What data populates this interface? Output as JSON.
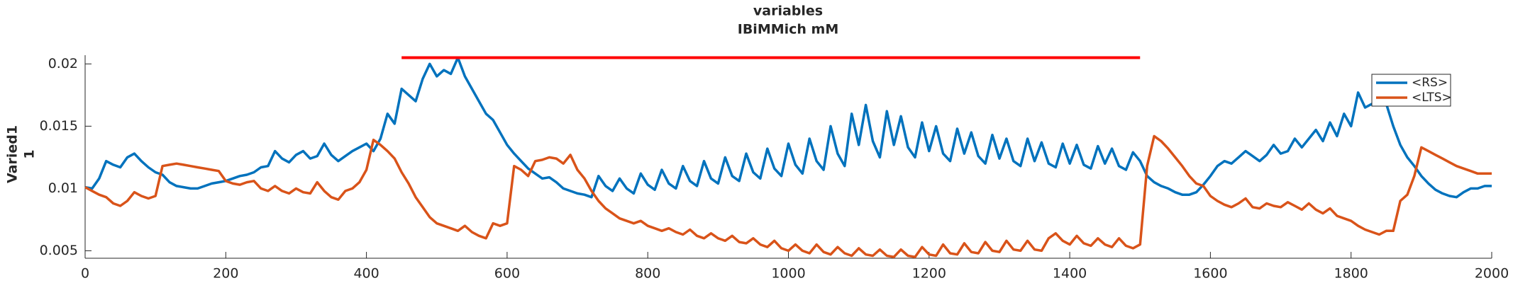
{
  "chart_data": {
    "type": "line",
    "title": "variables",
    "subtitle": "IBiMMich mM",
    "ylabel": [
      "Varied1",
      "1"
    ],
    "xlim": [
      0,
      2000
    ],
    "xticks": [
      0,
      200,
      400,
      600,
      800,
      1000,
      1200,
      1400,
      1600,
      1800,
      2000
    ],
    "ylim": [
      0.0044,
      0.0207
    ],
    "yticks": [
      0.005,
      0.01,
      0.015,
      0.02
    ],
    "grid": false,
    "legend": "upper right",
    "significance": {
      "x": [
        450,
        1500
      ],
      "value": 0.0205,
      "color": "#ff0000"
    },
    "x": [
      0,
      10,
      20,
      30,
      40,
      50,
      60,
      70,
      80,
      90,
      100,
      110,
      120,
      130,
      140,
      150,
      160,
      170,
      180,
      190,
      200,
      210,
      220,
      230,
      240,
      250,
      260,
      270,
      280,
      290,
      300,
      310,
      320,
      330,
      340,
      350,
      360,
      370,
      380,
      390,
      400,
      410,
      420,
      430,
      440,
      450,
      460,
      470,
      480,
      490,
      500,
      510,
      520,
      530,
      540,
      550,
      560,
      570,
      580,
      590,
      600,
      610,
      620,
      630,
      640,
      650,
      660,
      670,
      680,
      690,
      700,
      710,
      720,
      730,
      740,
      750,
      760,
      770,
      780,
      790,
      800,
      810,
      820,
      830,
      840,
      850,
      860,
      870,
      880,
      890,
      900,
      910,
      920,
      930,
      940,
      950,
      960,
      970,
      980,
      990,
      1000,
      1010,
      1020,
      1030,
      1040,
      1050,
      1060,
      1070,
      1080,
      1090,
      1100,
      1110,
      1120,
      1130,
      1140,
      1150,
      1160,
      1170,
      1180,
      1190,
      1200,
      1210,
      1220,
      1230,
      1240,
      1250,
      1260,
      1270,
      1280,
      1290,
      1300,
      1310,
      1320,
      1330,
      1340,
      1350,
      1360,
      1370,
      1380,
      1390,
      1400,
      1410,
      1420,
      1430,
      1440,
      1450,
      1460,
      1470,
      1480,
      1490,
      1500,
      1510,
      1520,
      1530,
      1540,
      1550,
      1560,
      1570,
      1580,
      1590,
      1600,
      1610,
      1620,
      1630,
      1640,
      1650,
      1660,
      1670,
      1680,
      1690,
      1700,
      1710,
      1720,
      1730,
      1740,
      1750,
      1760,
      1770,
      1780,
      1790,
      1800,
      1810,
      1820,
      1830,
      1840,
      1850,
      1860,
      1870,
      1880,
      1890,
      1900,
      1910,
      1920,
      1930,
      1940,
      1950,
      1960,
      1970,
      1980,
      1990,
      2000
    ],
    "series": [
      {
        "name": "<RS>",
        "color": "#0072BD",
        "values": [
          0.0101,
          0.01,
          0.0108,
          0.0122,
          0.0119,
          0.0117,
          0.0125,
          0.0128,
          0.0122,
          0.0117,
          0.0113,
          0.0111,
          0.0105,
          0.0102,
          0.0101,
          0.01,
          0.01,
          0.0102,
          0.0104,
          0.0105,
          0.0106,
          0.0108,
          0.011,
          0.0111,
          0.0113,
          0.0117,
          0.0118,
          0.013,
          0.0124,
          0.0121,
          0.0127,
          0.013,
          0.0124,
          0.0126,
          0.0136,
          0.0127,
          0.0122,
          0.0126,
          0.013,
          0.0133,
          0.0136,
          0.013,
          0.014,
          0.016,
          0.0152,
          0.018,
          0.0175,
          0.017,
          0.0188,
          0.02,
          0.019,
          0.0195,
          0.0192,
          0.0205,
          0.019,
          0.018,
          0.017,
          0.016,
          0.0155,
          0.0145,
          0.0135,
          0.0128,
          0.0122,
          0.0116,
          0.0112,
          0.0108,
          0.0109,
          0.0105,
          0.01,
          0.0098,
          0.0096,
          0.0095,
          0.0093,
          0.011,
          0.0102,
          0.0098,
          0.0108,
          0.01,
          0.0096,
          0.0112,
          0.0103,
          0.0099,
          0.0115,
          0.0104,
          0.01,
          0.0118,
          0.0106,
          0.0102,
          0.0122,
          0.0108,
          0.0104,
          0.0125,
          0.011,
          0.0106,
          0.0128,
          0.0113,
          0.0108,
          0.0132,
          0.0116,
          0.011,
          0.0136,
          0.0119,
          0.0112,
          0.014,
          0.0122,
          0.0115,
          0.015,
          0.0128,
          0.0118,
          0.016,
          0.0135,
          0.0167,
          0.0138,
          0.0125,
          0.0162,
          0.0135,
          0.0158,
          0.0133,
          0.0125,
          0.0153,
          0.013,
          0.015,
          0.0128,
          0.0122,
          0.0148,
          0.0128,
          0.0145,
          0.0126,
          0.012,
          0.0143,
          0.0124,
          0.014,
          0.0122,
          0.0118,
          0.014,
          0.0122,
          0.0137,
          0.012,
          0.0117,
          0.0136,
          0.012,
          0.0135,
          0.0119,
          0.0116,
          0.0134,
          0.012,
          0.0132,
          0.0118,
          0.0115,
          0.0129,
          0.0122,
          0.011,
          0.0105,
          0.0102,
          0.01,
          0.0097,
          0.0095,
          0.0095,
          0.0097,
          0.0103,
          0.011,
          0.0118,
          0.0122,
          0.012,
          0.0125,
          0.013,
          0.0126,
          0.0122,
          0.0127,
          0.0135,
          0.0128,
          0.013,
          0.014,
          0.0133,
          0.014,
          0.0147,
          0.0138,
          0.0153,
          0.0142,
          0.016,
          0.015,
          0.0177,
          0.0165,
          0.0168,
          0.0175,
          0.0168,
          0.015,
          0.0135,
          0.0125,
          0.0118,
          0.011,
          0.0104,
          0.0099,
          0.0096,
          0.0094,
          0.0093,
          0.0097,
          0.01,
          0.01,
          0.0102,
          0.0102
        ]
      },
      {
        "name": "<LTS>",
        "color": "#D95319",
        "values": [
          0.0101,
          0.0098,
          0.0095,
          0.0093,
          0.0088,
          0.0086,
          0.009,
          0.0097,
          0.0094,
          0.0092,
          0.0094,
          0.0118,
          0.0119,
          0.012,
          0.0119,
          0.0118,
          0.0117,
          0.0116,
          0.0115,
          0.0114,
          0.0106,
          0.0104,
          0.0103,
          0.0105,
          0.0106,
          0.01,
          0.0098,
          0.0102,
          0.0098,
          0.0096,
          0.01,
          0.0097,
          0.0096,
          0.0105,
          0.0098,
          0.0093,
          0.0091,
          0.0098,
          0.01,
          0.0105,
          0.0115,
          0.0139,
          0.0135,
          0.013,
          0.0124,
          0.0113,
          0.0104,
          0.0093,
          0.0085,
          0.0077,
          0.0072,
          0.007,
          0.0068,
          0.0066,
          0.007,
          0.0065,
          0.0062,
          0.006,
          0.0072,
          0.007,
          0.0072,
          0.0118,
          0.0115,
          0.011,
          0.0122,
          0.0123,
          0.0125,
          0.0124,
          0.012,
          0.0127,
          0.0115,
          0.0108,
          0.0098,
          0.009,
          0.0084,
          0.008,
          0.0076,
          0.0074,
          0.0072,
          0.0074,
          0.007,
          0.0068,
          0.0066,
          0.0068,
          0.0065,
          0.0063,
          0.0067,
          0.0062,
          0.006,
          0.0064,
          0.006,
          0.0058,
          0.0062,
          0.0057,
          0.0056,
          0.006,
          0.0055,
          0.0053,
          0.0058,
          0.0052,
          0.005,
          0.0055,
          0.005,
          0.0048,
          0.0055,
          0.0049,
          0.0047,
          0.0053,
          0.0048,
          0.0046,
          0.0052,
          0.0047,
          0.0046,
          0.0051,
          0.0046,
          0.0045,
          0.0051,
          0.0046,
          0.0045,
          0.0053,
          0.0047,
          0.0046,
          0.0055,
          0.0048,
          0.0047,
          0.0056,
          0.0049,
          0.0048,
          0.0057,
          0.005,
          0.0049,
          0.0058,
          0.0051,
          0.005,
          0.0058,
          0.0051,
          0.005,
          0.006,
          0.0064,
          0.0058,
          0.0055,
          0.0062,
          0.0056,
          0.0054,
          0.006,
          0.0055,
          0.0053,
          0.006,
          0.0054,
          0.0052,
          0.0055,
          0.0118,
          0.0142,
          0.0138,
          0.0132,
          0.0125,
          0.0118,
          0.011,
          0.0104,
          0.0102,
          0.0094,
          0.009,
          0.0087,
          0.0085,
          0.0088,
          0.0092,
          0.0085,
          0.0084,
          0.0088,
          0.0086,
          0.0085,
          0.0089,
          0.0086,
          0.0083,
          0.0088,
          0.0083,
          0.008,
          0.0084,
          0.0078,
          0.0076,
          0.0074,
          0.007,
          0.0067,
          0.0065,
          0.0063,
          0.0066,
          0.0066,
          0.009,
          0.0095,
          0.011,
          0.0133,
          0.013,
          0.0127,
          0.0124,
          0.0121,
          0.0118,
          0.0116,
          0.0114,
          0.0112,
          0.0112,
          0.0112
        ]
      }
    ]
  }
}
